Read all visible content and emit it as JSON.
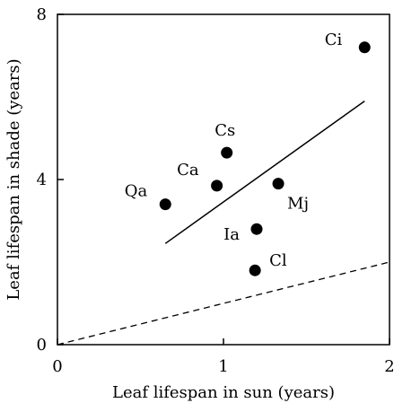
{
  "chart_data": {
    "type": "scatter",
    "title": "",
    "xlabel": "Leaf lifespan in sun (years)",
    "ylabel": "Leaf lifespan in shade (years)",
    "xlim": [
      0,
      2
    ],
    "ylim": [
      0,
      8
    ],
    "xticks": [
      0,
      1,
      2
    ],
    "yticks": [
      0,
      4,
      8
    ],
    "grid": false,
    "points": [
      {
        "label": "Ci",
        "x": 1.85,
        "y": 7.2
      },
      {
        "label": "Cs",
        "x": 1.02,
        "y": 4.65
      },
      {
        "label": "Ca",
        "x": 0.96,
        "y": 3.85
      },
      {
        "label": "Qa",
        "x": 0.65,
        "y": 3.4
      },
      {
        "label": "Mj",
        "x": 1.33,
        "y": 3.9
      },
      {
        "label": "Ia",
        "x": 1.2,
        "y": 2.8
      },
      {
        "label": "Cl",
        "x": 1.19,
        "y": 1.8
      }
    ],
    "regression_line": {
      "style": "solid",
      "x": [
        0.65,
        1.85
      ],
      "y": [
        2.45,
        5.9
      ]
    },
    "reference_line": {
      "style": "dashed",
      "x": [
        0,
        2
      ],
      "y": [
        0,
        2
      ]
    }
  }
}
